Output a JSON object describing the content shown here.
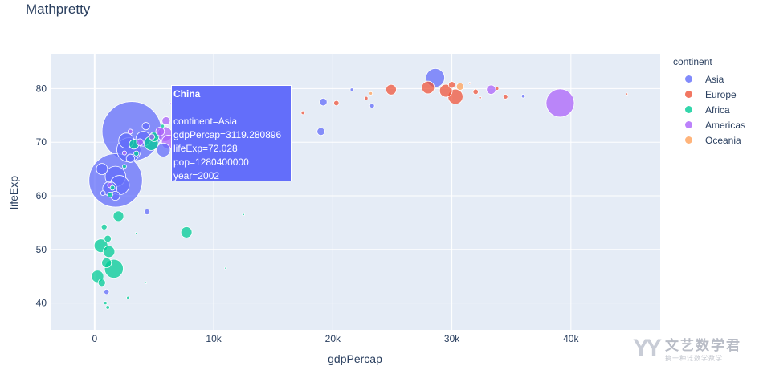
{
  "title": "Mathpretty",
  "chart_data": {
    "type": "scatter",
    "title": "Mathpretty",
    "xlabel": "gdpPercap",
    "ylabel": "lifeExp",
    "xlim": [
      -3700,
      47500
    ],
    "ylim": [
      35,
      86.5
    ],
    "xticks": [
      0,
      10000,
      20000,
      30000,
      40000
    ],
    "xtick_labels": [
      "0",
      "10k",
      "20k",
      "30k",
      "40k"
    ],
    "yticks": [
      40,
      50,
      60,
      70,
      80
    ],
    "ytick_labels": [
      "40",
      "50",
      "60",
      "70",
      "80"
    ],
    "grid": true,
    "legend_title": "continent",
    "legend_position": "right",
    "series": [
      {
        "name": "Asia",
        "color": "#636efa",
        "points": [
          [
            3119.28,
            72.03,
            1280400000
          ],
          [
            1764.46,
            62.88,
            1034172547
          ],
          [
            28604.59,
            82.0,
            127065841
          ],
          [
            2873.91,
            68.59,
            211060000
          ],
          [
            1746.77,
            63.61,
            153403524
          ],
          [
            2092.71,
            62.01,
            135656790
          ],
          [
            2650.92,
            70.3,
            82995088
          ],
          [
            4090.93,
            70.65,
            80264543
          ],
          [
            5773.04,
            68.56,
            67907000
          ],
          [
            1270.36,
            61.34,
            73300000
          ],
          [
            611.0,
            65.0,
            46000000
          ],
          [
            1740.0,
            60.0,
            30000000
          ],
          [
            3000.0,
            67.0,
            25000000
          ],
          [
            4300.0,
            73.0,
            20000000
          ],
          [
            19000.0,
            72.0,
            22000000
          ],
          [
            19200.0,
            77.5,
            21000000
          ],
          [
            23300.0,
            76.8,
            8000000
          ],
          [
            4400.0,
            57.0,
            12000000
          ],
          [
            1000.0,
            42.1,
            10000000
          ],
          [
            36000.0,
            78.6,
            5000000
          ],
          [
            21600.0,
            79.8,
            4000000
          ],
          [
            700.0,
            60.5,
            8000000
          ]
        ]
      },
      {
        "name": "Europe",
        "color": "#EF553B",
        "points": [
          [
            29500.0,
            79.6,
            59000000
          ],
          [
            30300.0,
            78.5,
            82000000
          ],
          [
            28000.0,
            80.2,
            58000000
          ],
          [
            24900.0,
            79.8,
            40000000
          ],
          [
            30000.0,
            80.7,
            16000000
          ],
          [
            32000.0,
            79.4,
            10000000
          ],
          [
            34500.0,
            78.5,
            8000000
          ],
          [
            33800.0,
            80.0,
            4000000
          ],
          [
            44700.0,
            79.0,
            1000000
          ],
          [
            20300.0,
            77.3,
            10000000
          ],
          [
            17500.0,
            75.5,
            5000000
          ],
          [
            22800.0,
            78.2,
            5000000
          ],
          [
            32400.0,
            78.3,
            1000000
          ],
          [
            31500.0,
            81.0,
            800000
          ]
        ]
      },
      {
        "name": "Africa",
        "color": "#00cc96",
        "points": [
          [
            1615.0,
            46.4,
            128000000
          ],
          [
            530.0,
            50.7,
            67000000
          ],
          [
            241.0,
            44.97,
            55000000
          ],
          [
            1200.0,
            49.6,
            50000000
          ],
          [
            4754.0,
            69.8,
            73000000
          ],
          [
            5000.0,
            71.0,
            32000000
          ],
          [
            7710.0,
            53.2,
            45000000
          ],
          [
            2000.0,
            56.2,
            40000000
          ],
          [
            3300.0,
            69.6,
            33000000
          ],
          [
            1000.0,
            47.5,
            35000000
          ],
          [
            600.0,
            43.8,
            20000000
          ],
          [
            1100.0,
            52.0,
            18000000
          ],
          [
            800.0,
            54.2,
            12000000
          ],
          [
            1300.0,
            60.2,
            10000000
          ],
          [
            1500.0,
            61.5,
            8000000
          ],
          [
            2500.0,
            65.5,
            6000000
          ],
          [
            5700.0,
            73.0,
            5000000
          ],
          [
            3500.0,
            67.9,
            9000000
          ],
          [
            900.0,
            40.0,
            4000000
          ],
          [
            1100.0,
            39.2,
            5000000
          ],
          [
            2800.0,
            41.0,
            3000000
          ],
          [
            12500.0,
            56.5,
            1500000
          ],
          [
            11000.0,
            46.5,
            1000000
          ],
          [
            3500.0,
            53.0,
            1500000
          ],
          [
            4300.0,
            43.8,
            600000
          ]
        ]
      },
      {
        "name": "Americas",
        "color": "#ab63fa",
        "points": [
          [
            39097.1,
            77.31,
            287675526
          ],
          [
            5900.0,
            71.5,
            79000000
          ],
          [
            6200.0,
            70.0,
            70000000
          ],
          [
            33300.0,
            79.8,
            31000000
          ],
          [
            5500.0,
            72.0,
            27000000
          ],
          [
            6000.0,
            74.0,
            24000000
          ],
          [
            3800.0,
            70.0,
            17000000
          ],
          [
            4800.0,
            71.0,
            12000000
          ],
          [
            6500.0,
            77.2,
            5000000
          ],
          [
            7200.0,
            74.5,
            6000000
          ],
          [
            3000.0,
            72.0,
            8000000
          ],
          [
            1300.0,
            62.0,
            10000000
          ],
          [
            2500.0,
            68.0,
            6000000
          ]
        ]
      },
      {
        "name": "Oceania",
        "color": "#FFA15A",
        "points": [
          [
            30687.75,
            80.37,
            19546792
          ],
          [
            23190.0,
            79.11,
            3908037
          ]
        ]
      }
    ],
    "hover": {
      "name": "China",
      "lines": [
        "continent=Asia",
        "gdpPercap=3119.280896",
        "lifeExp=72.028",
        "pop=1280400000",
        "year=2002"
      ]
    }
  },
  "watermark": {
    "mark": "YY",
    "main": "文艺数学君",
    "sub": "搞一种泛数学数学"
  }
}
